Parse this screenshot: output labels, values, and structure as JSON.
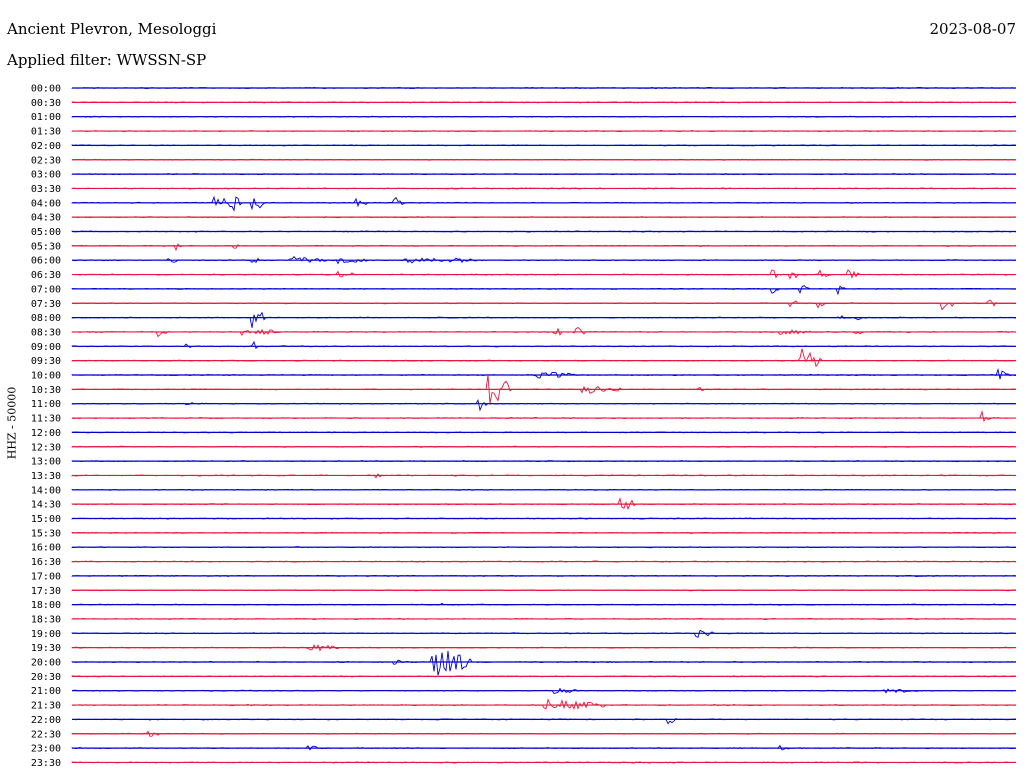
{
  "header": {
    "station": "Ancient Plevron, Mesologgi",
    "date": "2023-08-07",
    "filter": "Applied filter: WWSSN-SP"
  },
  "chart_data": {
    "type": "line",
    "title": "",
    "xlabel": "",
    "ylabel": "HHZ - 50000",
    "colors": [
      "#0000cc",
      "#e8173f"
    ],
    "rows": [
      {
        "label": "00:00",
        "events": []
      },
      {
        "label": "00:30",
        "events": []
      },
      {
        "label": "01:00",
        "events": []
      },
      {
        "label": "01:30",
        "events": []
      },
      {
        "label": "02:00",
        "events": []
      },
      {
        "label": "02:30",
        "events": []
      },
      {
        "label": "03:00",
        "events": []
      },
      {
        "label": "03:30",
        "events": []
      },
      {
        "label": "04:00",
        "events": [
          [
            0.15,
            6,
            10
          ],
          [
            0.16,
            9,
            12
          ],
          [
            0.17,
            14,
            8
          ],
          [
            0.19,
            9,
            14
          ],
          [
            0.3,
            5,
            12
          ],
          [
            0.34,
            7,
            14
          ]
        ]
      },
      {
        "label": "04:30",
        "events": []
      },
      {
        "label": "05:00",
        "events": []
      },
      {
        "label": "05:30",
        "events": [
          [
            0.11,
            5,
            6
          ],
          [
            0.17,
            4,
            6
          ]
        ]
      },
      {
        "label": "06:00",
        "events": [
          [
            0.1,
            4,
            12
          ],
          [
            0.19,
            4,
            10
          ],
          [
            0.23,
            4,
            40
          ],
          [
            0.28,
            4,
            30
          ],
          [
            0.35,
            4,
            40
          ],
          [
            0.4,
            3,
            30
          ]
        ]
      },
      {
        "label": "06:30",
        "events": [
          [
            0.28,
            5,
            8
          ],
          [
            0.29,
            4,
            8
          ],
          [
            0.74,
            8,
            6
          ],
          [
            0.76,
            7,
            10
          ],
          [
            0.79,
            6,
            12
          ],
          [
            0.82,
            6,
            12
          ]
        ]
      },
      {
        "label": "07:00",
        "events": [
          [
            0.74,
            6,
            8
          ],
          [
            0.77,
            6,
            10
          ],
          [
            0.81,
            6,
            8
          ]
        ]
      },
      {
        "label": "07:30",
        "events": [
          [
            0.76,
            6,
            8
          ],
          [
            0.79,
            5,
            8
          ],
          [
            0.92,
            7,
            14
          ],
          [
            0.97,
            5,
            10
          ]
        ]
      },
      {
        "label": "08:00",
        "events": [
          [
            0.19,
            16,
            14
          ],
          [
            0.81,
            5,
            8
          ],
          [
            0.83,
            5,
            6
          ]
        ]
      },
      {
        "label": "08:30",
        "events": [
          [
            0.09,
            5,
            14
          ],
          [
            0.18,
            4,
            40
          ],
          [
            0.51,
            7,
            8
          ],
          [
            0.53,
            8,
            12
          ],
          [
            0.75,
            3,
            30
          ],
          [
            0.83,
            5,
            8
          ]
        ]
      },
      {
        "label": "09:00",
        "events": [
          [
            0.12,
            3,
            6
          ],
          [
            0.19,
            6,
            8
          ]
        ]
      },
      {
        "label": "09:30",
        "events": [
          [
            0.77,
            14,
            22
          ]
        ]
      },
      {
        "label": "10:00",
        "events": [
          [
            0.49,
            4,
            40
          ],
          [
            0.98,
            6,
            14
          ]
        ]
      },
      {
        "label": "10:30",
        "events": [
          [
            0.44,
            18,
            24
          ],
          [
            0.54,
            5,
            40
          ],
          [
            0.66,
            5,
            10
          ]
        ]
      },
      {
        "label": "11:00",
        "events": [
          [
            0.43,
            8,
            10
          ],
          [
            0.12,
            3,
            8
          ]
        ]
      },
      {
        "label": "11:30",
        "events": [
          [
            0.96,
            9,
            16
          ]
        ]
      },
      {
        "label": "12:00",
        "events": []
      },
      {
        "label": "12:30",
        "events": []
      },
      {
        "label": "13:00",
        "events": []
      },
      {
        "label": "13:30",
        "events": [
          [
            0.32,
            3,
            8
          ]
        ]
      },
      {
        "label": "14:00",
        "events": []
      },
      {
        "label": "14:30",
        "events": [
          [
            0.58,
            8,
            16
          ]
        ]
      },
      {
        "label": "15:00",
        "events": []
      },
      {
        "label": "15:30",
        "events": []
      },
      {
        "label": "16:00",
        "events": []
      },
      {
        "label": "16:30",
        "events": []
      },
      {
        "label": "17:00",
        "events": []
      },
      {
        "label": "17:30",
        "events": []
      },
      {
        "label": "18:00",
        "events": [
          [
            0.39,
            3,
            6
          ]
        ]
      },
      {
        "label": "18:30",
        "events": []
      },
      {
        "label": "19:00",
        "events": [
          [
            0.66,
            5,
            18
          ]
        ]
      },
      {
        "label": "19:30",
        "events": [
          [
            0.25,
            4,
            30
          ]
        ]
      },
      {
        "label": "20:00",
        "events": [
          [
            0.34,
            4,
            8
          ],
          [
            0.38,
            16,
            40
          ]
        ]
      },
      {
        "label": "20:30",
        "events": []
      },
      {
        "label": "21:00",
        "events": [
          [
            0.51,
            3,
            30
          ],
          [
            0.86,
            3,
            30
          ]
        ]
      },
      {
        "label": "21:30",
        "events": [
          [
            0.5,
            6,
            60
          ]
        ]
      },
      {
        "label": "22:00",
        "events": [
          [
            0.63,
            6,
            10
          ]
        ]
      },
      {
        "label": "22:30",
        "events": [
          [
            0.08,
            4,
            12
          ],
          [
            0.77,
            3,
            8
          ]
        ]
      },
      {
        "label": "23:00",
        "events": [
          [
            0.25,
            3,
            14
          ],
          [
            0.75,
            3,
            8
          ]
        ]
      },
      {
        "label": "23:30",
        "events": []
      }
    ]
  }
}
